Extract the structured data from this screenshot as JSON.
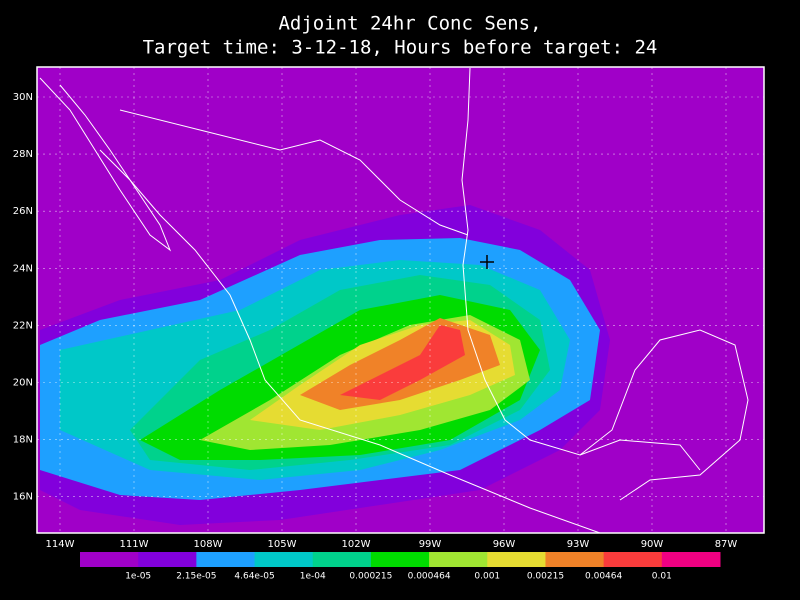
{
  "title": {
    "line1": "Adjoint 24hr Conc Sens,",
    "line2": "Target time: 3-12-18, Hours before target: 24"
  },
  "lat_labels": [
    "30N",
    "28N",
    "26N",
    "24N",
    "22N",
    "20N",
    "18N",
    "16N"
  ],
  "lon_labels": [
    "114W",
    "111W",
    "108W",
    "105W",
    "102W",
    "99W",
    "96W",
    "93W",
    "90W",
    "87W"
  ],
  "colorbar": {
    "colors": [
      "#a000c8",
      "#8200dc",
      "#1ea0ff",
      "#00c8c8",
      "#00d28c",
      "#00dc00",
      "#a0e632",
      "#e6dc32",
      "#f08228",
      "#fa3c3c",
      "#f00082"
    ],
    "labels": [
      "1e-05",
      "2.15e-05",
      "4.64e-05",
      "1e-04",
      "0.000215",
      "0.000464",
      "0.001",
      "0.00215",
      "0.00464",
      "0.01"
    ]
  }
}
